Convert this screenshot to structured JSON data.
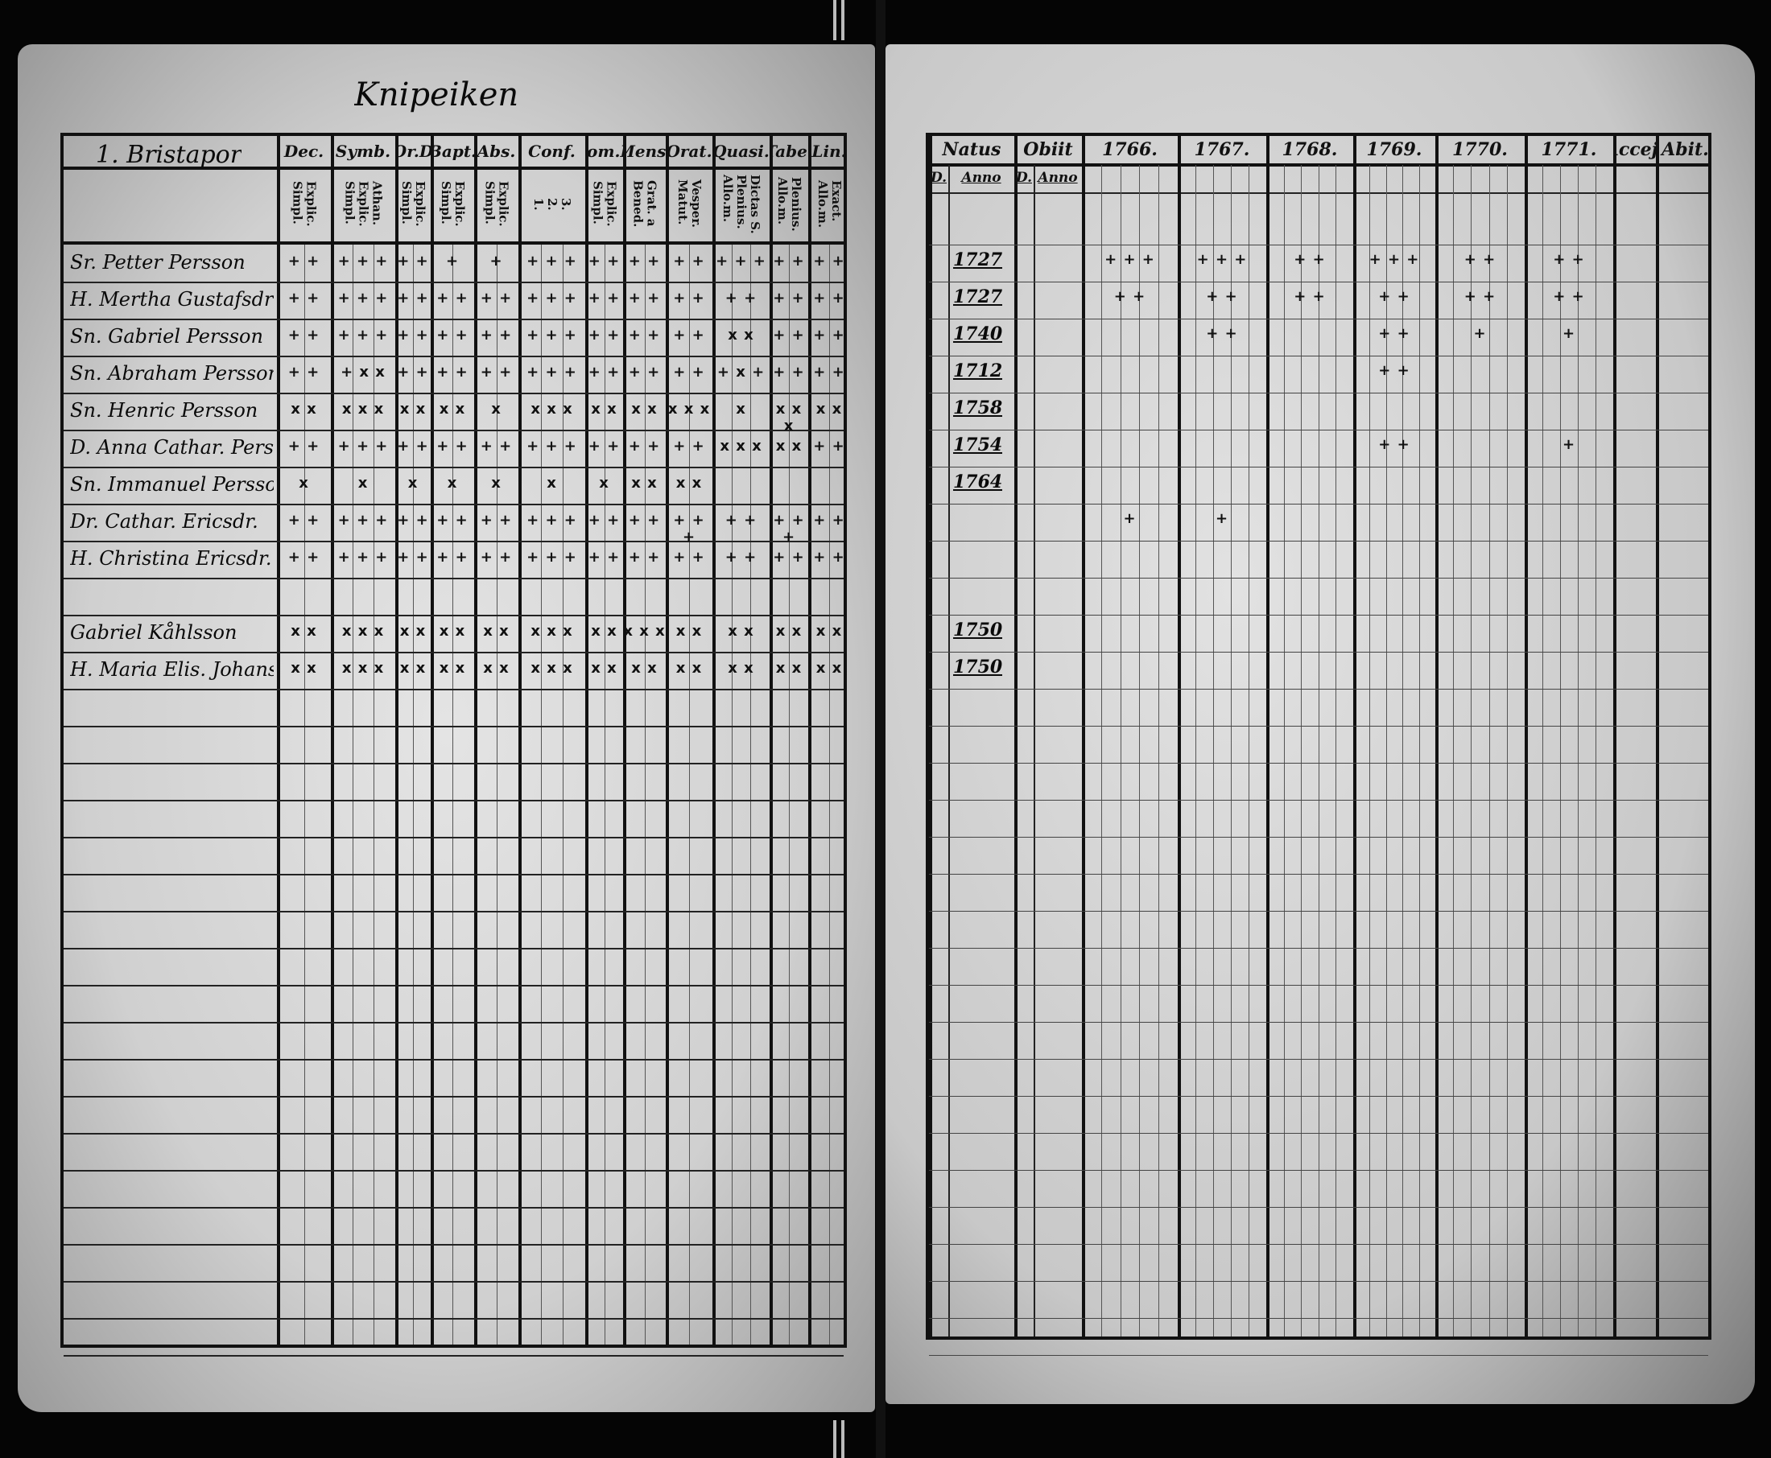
{
  "page_title": "Knipeiken",
  "left_table": {
    "corner_label": "1. Bristapor",
    "columns": [
      {
        "label": "Dec.",
        "sub": "Explic.\nSimpl."
      },
      {
        "label": "Symb.",
        "sub": "Athan.\nExplic.\nSimpl."
      },
      {
        "label": "Or.D",
        "sub": "Explic.\nSimpl."
      },
      {
        "label": "Bapt.",
        "sub": "Explic.\nSimpl."
      },
      {
        "label": "Abs.",
        "sub": "Explic.\nSimpl."
      },
      {
        "label": "Conf.",
        "sub": "3.\n2.\n1."
      },
      {
        "label": "Com.D",
        "sub": "Explic.\nSimpl."
      },
      {
        "label": "Mens.",
        "sub": "Grat. a\nBened."
      },
      {
        "label": "Orat.",
        "sub": "Vesper.\nMatut."
      },
      {
        "label": "Quasi.",
        "sub": "Dictas S.\nPlenius.\nAllo.m."
      },
      {
        "label": "Tabe.",
        "sub": "Plenius.\nAllo.m."
      },
      {
        "label": "Lin.",
        "sub": "Exact.\nAllo.m."
      }
    ],
    "rows": [
      {
        "name": "Sr. Petter Persson",
        "marks": [
          "+ +",
          "+ + +",
          "+ +",
          "+",
          "+",
          "+ + +",
          "+ +",
          "+ +",
          "+ +",
          "+ + +",
          "+ +",
          "+ +"
        ]
      },
      {
        "name": "H. Mertha Gustafsdr",
        "marks": [
          "+ +",
          "+ + +",
          "+ +",
          "+ +",
          "+ +",
          "+ + +",
          "+ +",
          "+ +",
          "+ +",
          "+ +",
          "+ +",
          "+ +"
        ]
      },
      {
        "name": "Sn. Gabriel Persson",
        "marks": [
          "+ +",
          "+ + +",
          "+ +",
          "+ +",
          "+ +",
          "+ + +",
          "+ +",
          "+ +",
          "+ +",
          "x x",
          "+ +",
          "+ +"
        ]
      },
      {
        "name": "Sn. Abraham Persson",
        "marks": [
          "+ +",
          "+ x x",
          "+ +",
          "+ +",
          "+ +",
          "+ + +",
          "+ +",
          "+ +",
          "+ +",
          "+ x +",
          "+ +",
          "+ +"
        ]
      },
      {
        "name": "Sn. Henric Persson",
        "marks": [
          "x x",
          "x x x",
          "x x",
          "x x",
          "x",
          "x x x",
          "x x",
          "x x",
          "x x x",
          "x",
          "x x x",
          "x x"
        ]
      },
      {
        "name": "D. Anna Cathar. Persdr.",
        "marks": [
          "+ +",
          "+ + +",
          "+ +",
          "+ +",
          "+ +",
          "+ + +",
          "+ +",
          "+ +",
          "+ +",
          "x x x",
          "x x",
          "+ +"
        ]
      },
      {
        "name": "Sn. Immanuel Persson",
        "marks": [
          "x",
          "x",
          "x",
          "x",
          "x",
          "x",
          "x",
          "x x",
          "x x",
          "",
          "",
          " "
        ]
      },
      {
        "name": "Dr. Cathar. Ericsdr.",
        "marks": [
          "+ +",
          "+ + +",
          "+ +",
          "+ +",
          "+ +",
          "+ + +",
          "+ +",
          "+ +",
          "+ + +",
          "+ +",
          "+ + +",
          "+ +"
        ]
      },
      {
        "name": "H. Christina Ericsdr.",
        "marks": [
          "+ +",
          "+ + +",
          "+ +",
          "+ +",
          "+ +",
          "+ + +",
          "+ +",
          "+ +",
          "+ +",
          "+ +",
          "+ +",
          "+ +"
        ]
      },
      {
        "name": "",
        "marks": []
      },
      {
        "name": "Gabriel Kåhlsson",
        "marks": [
          "x x",
          "x x x",
          "x x",
          "x x",
          "x x",
          "x x x",
          "x x",
          "x x x",
          "x x",
          "x x",
          "x x",
          "x x"
        ]
      },
      {
        "name": "H. Maria Elis. Johansdr",
        "marks": [
          "x x",
          "x x x",
          "x x",
          "x x",
          "x x",
          "x x x",
          "x x",
          "x x",
          "x x",
          "x x",
          "x x",
          "x x"
        ]
      }
    ]
  },
  "right_table": {
    "columns": [
      {
        "label": "Natus",
        "sub": [
          "D.",
          "Anno"
        ]
      },
      {
        "label": "Obiit",
        "sub": [
          "D.",
          "Anno"
        ]
      },
      {
        "label": "1766."
      },
      {
        "label": "1767."
      },
      {
        "label": "1768."
      },
      {
        "label": "1769."
      },
      {
        "label": "1770."
      },
      {
        "label": "1771."
      },
      {
        "label": "Accej."
      },
      {
        "label": "Abit."
      }
    ],
    "rows": [
      {
        "born": "1727",
        "marks": [
          "+ + +",
          "+ + +",
          "+ +",
          "+ + +",
          "+ +",
          "+ +"
        ]
      },
      {
        "born": "1727",
        "marks": [
          "+ +",
          "+ +",
          "+ +",
          "+ +",
          "+ +",
          "+ +"
        ]
      },
      {
        "born": "1740",
        "marks": [
          "",
          "+ +",
          "",
          "+ +",
          "+",
          "+"
        ]
      },
      {
        "born": "1712",
        "marks": [
          "",
          "",
          "",
          "+ +",
          "",
          ""
        ]
      },
      {
        "born": "1758",
        "marks": [
          "",
          "",
          "",
          "",
          "",
          ""
        ]
      },
      {
        "born": "1754",
        "marks": [
          "",
          "",
          "",
          "+ +",
          "",
          "+"
        ]
      },
      {
        "born": "1764",
        "marks": [
          "",
          "",
          "",
          "",
          "",
          ""
        ]
      },
      {
        "born": "",
        "marks": [
          "+",
          "+",
          "",
          "",
          "",
          ""
        ]
      },
      {
        "born": "",
        "marks": []
      },
      {
        "born": "",
        "marks": []
      },
      {
        "born": "1750",
        "marks": []
      },
      {
        "born": "1750",
        "marks": []
      }
    ]
  }
}
